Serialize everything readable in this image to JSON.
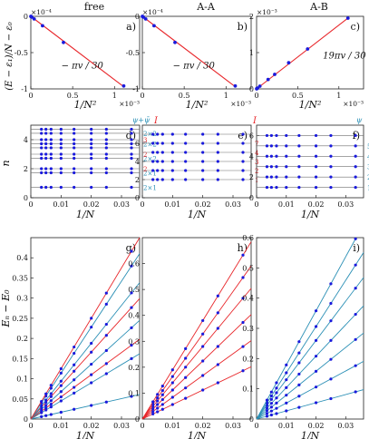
{
  "colors": {
    "red": "#e8262a",
    "teal": "#2a8fb5",
    "blue": "#1a1adc",
    "axis": "#222222",
    "guide": "#6f6f6f"
  },
  "ylabels": {
    "row1": "(E − ε₁)/N − ε₀",
    "row2": "n",
    "row3": "Eₙ − E₀"
  },
  "chart_data": [
    {
      "id": "a",
      "type": "scatter",
      "panel_label": "a)",
      "header": "free",
      "xlabel": "1/N²",
      "x_exponent": "×10⁻³",
      "y_exponent": "×10⁻⁴",
      "xlim": [
        0,
        1.3
      ],
      "ylim": [
        -1.0,
        0.0
      ],
      "xticks": [
        0,
        0.5,
        1
      ],
      "yticks": [
        -1,
        -0.5,
        0
      ],
      "xticklabels": [
        "0",
        "0.5",
        "1"
      ],
      "yticklabels": [
        "-1",
        "-0.5",
        "0"
      ],
      "x": [
        0.0008,
        0.003,
        0.012,
        0.04,
        0.14,
        0.39,
        1.11
      ],
      "y": [
        0.0,
        -0.003,
        -0.011,
        -0.036,
        -0.13,
        -0.36,
        -0.96
      ],
      "fit": {
        "x": [
          0,
          1.11
        ],
        "y": [
          0,
          -0.97
        ],
        "color": "red"
      },
      "annotation": "− πv / 30"
    },
    {
      "id": "b",
      "type": "scatter",
      "panel_label": "b)",
      "header": "A-A",
      "xlabel": "1/N²",
      "x_exponent": "×10⁻³",
      "y_exponent": "×10⁻⁴",
      "xlim": [
        0,
        1.3
      ],
      "ylim": [
        -1.0,
        0.0
      ],
      "xticks": [
        0,
        0.5,
        1
      ],
      "yticks": [
        -1,
        -0.5,
        0
      ],
      "xticklabels": [
        "0",
        "0.5",
        "1"
      ],
      "yticklabels": [
        "-1",
        "-0.5",
        "0"
      ],
      "x": [
        0.0008,
        0.003,
        0.012,
        0.04,
        0.14,
        0.39,
        1.11
      ],
      "y": [
        0.0,
        -0.003,
        -0.011,
        -0.036,
        -0.13,
        -0.36,
        -0.96
      ],
      "fit": {
        "x": [
          0,
          1.11
        ],
        "y": [
          0,
          -0.97
        ],
        "color": "red"
      },
      "annotation": "− πv / 30"
    },
    {
      "id": "c",
      "type": "scatter",
      "panel_label": "c)",
      "header": "A-B",
      "xlabel": "1/N²",
      "x_exponent": "×10⁻³",
      "y_exponent": "×10⁻³",
      "xlim": [
        0,
        1.3
      ],
      "ylim": [
        0,
        2.0
      ],
      "xticks": [
        0,
        0.5,
        1
      ],
      "yticks": [
        0,
        1,
        2
      ],
      "xticklabels": [
        "0",
        "0.5",
        "1"
      ],
      "yticklabels": [
        "0",
        "1",
        "2"
      ],
      "x": [
        0.0008,
        0.003,
        0.012,
        0.04,
        0.14,
        0.22,
        0.39,
        0.62,
        1.11
      ],
      "y": [
        0.002,
        0.006,
        0.022,
        0.075,
        0.26,
        0.4,
        0.72,
        1.1,
        1.95
      ],
      "fit": {
        "x": [
          0,
          1.11
        ],
        "y": [
          0,
          1.95
        ],
        "color": "red"
      },
      "annotation": "19πv / 30"
    },
    {
      "id": "d",
      "type": "scatter",
      "panel_label": "d)",
      "xlabel": "1/N",
      "ylabel": "n",
      "xlim": [
        0,
        0.036
      ],
      "ylim": [
        0,
        5
      ],
      "xticks": [
        0,
        0.01,
        0.02,
        0.03
      ],
      "yticks": [
        0,
        2,
        4
      ],
      "xticklabels": [
        "0",
        "0.01",
        "0.02",
        "0.03"
      ],
      "yticklabels": [
        "0",
        "2",
        "4"
      ],
      "x": [
        0.0035,
        0.005,
        0.0067,
        0.01,
        0.0143,
        0.02,
        0.025,
        0.0333
      ],
      "levels": [
        0.72,
        1.72,
        2.0,
        2.72,
        3.0,
        3.44,
        3.72,
        4.0,
        4.44,
        4.72
      ],
      "legend_top_teal": "ψ+ψ̄",
      "legend_top_red": "I",
      "right_labels": [
        {
          "y": 0.72,
          "text": "2×1",
          "color": "teal"
        },
        {
          "y": 1.72,
          "text": "2×1",
          "color": "teal"
        },
        {
          "y": 2.0,
          "text": "2",
          "color": "red"
        },
        {
          "y": 2.72,
          "text": "2×2",
          "color": "teal"
        },
        {
          "y": 3.0,
          "text": "2",
          "color": "red"
        },
        {
          "y": 3.72,
          "text": "2×2",
          "color": "teal"
        },
        {
          "y": 4.0,
          "text": "3",
          "color": "red"
        },
        {
          "y": 4.44,
          "text": "2×2",
          "color": "teal"
        }
      ]
    },
    {
      "id": "e",
      "type": "scatter",
      "panel_label": "e)",
      "xlabel": "1/N",
      "xlim": [
        0,
        0.036
      ],
      "ylim": [
        0,
        8
      ],
      "xticks": [
        0,
        0.01,
        0.02,
        0.03
      ],
      "yticks": [
        0,
        2,
        4,
        6
      ],
      "xticklabels": [
        "0",
        "0.01",
        "0.02",
        "0.03"
      ],
      "yticklabels": [
        "0",
        "2",
        "4",
        "6"
      ],
      "x": [
        0.0035,
        0.005,
        0.0067,
        0.01,
        0.0143,
        0.02,
        0.025,
        0.0333
      ],
      "levels": [
        2,
        3,
        4,
        5,
        6,
        7
      ],
      "legend_top_red": "I",
      "right_labels": [
        {
          "y": 2,
          "text": "1",
          "color": "red"
        },
        {
          "y": 3,
          "text": "2",
          "color": "red"
        },
        {
          "y": 4,
          "text": "3",
          "color": "red"
        },
        {
          "y": 5,
          "text": "4",
          "color": "red"
        },
        {
          "y": 6,
          "text": "7",
          "color": "red"
        }
      ]
    },
    {
      "id": "f",
      "type": "scatter",
      "panel_label": "f)",
      "xlabel": "1/N",
      "xlim": [
        0,
        0.036
      ],
      "ylim": [
        0,
        7
      ],
      "xticks": [
        0,
        0.01,
        0.02,
        0.03
      ],
      "yticks": [
        0,
        2,
        4,
        6
      ],
      "xticklabels": [
        "0",
        "0.01",
        "0.02",
        "0.03"
      ],
      "yticklabels": [
        "0",
        "2",
        "4",
        "6"
      ],
      "x": [
        0.0035,
        0.005,
        0.0067,
        0.01,
        0.0143,
        0.02,
        0.025,
        0.0333
      ],
      "levels": [
        1,
        2,
        3,
        4,
        5,
        6
      ],
      "legend_top_teal": "ψ",
      "right_labels": [
        {
          "y": 1,
          "text": "1",
          "color": "teal"
        },
        {
          "y": 2,
          "text": "2",
          "color": "teal"
        },
        {
          "y": 3,
          "text": "3",
          "color": "teal"
        },
        {
          "y": 4,
          "text": "4",
          "color": "teal"
        },
        {
          "y": 5,
          "text": "5",
          "color": "teal"
        }
      ]
    },
    {
      "id": "g",
      "type": "line",
      "panel_label": "g)",
      "xlabel": "1/N",
      "ylabel": "Eₙ − E₀",
      "xlim": [
        0,
        0.036
      ],
      "ylim": [
        0,
        0.45
      ],
      "xticks": [
        0,
        0.01,
        0.02,
        0.03
      ],
      "yticks": [
        0,
        0.05,
        0.1,
        0.15,
        0.2,
        0.25,
        0.3,
        0.35,
        0.4
      ],
      "xticklabels": [
        "0",
        "0.01",
        "0.02",
        "0.03"
      ],
      "yticklabels": [
        "0",
        "0.05",
        "0.1",
        "0.15",
        "0.2",
        "0.25",
        "0.3",
        "0.35",
        "0.4"
      ],
      "x": [
        0.0035,
        0.005,
        0.0067,
        0.01,
        0.0143,
        0.02,
        0.025,
        0.0333
      ],
      "slopes": [
        {
          "slope": 1.69,
          "color": "teal"
        },
        {
          "slope": 4.5,
          "color": "teal"
        },
        {
          "slope": 5.5,
          "color": "red"
        },
        {
          "slope": 6.8,
          "color": "teal"
        },
        {
          "slope": 8.3,
          "color": "red"
        },
        {
          "slope": 9.4,
          "color": "teal"
        },
        {
          "slope": 11.4,
          "color": "teal"
        },
        {
          "slope": 12.5,
          "color": "red"
        }
      ]
    },
    {
      "id": "h",
      "type": "line",
      "panel_label": "h)",
      "xlabel": "1/N",
      "xlim": [
        0,
        0.036
      ],
      "ylim": [
        0,
        0.7
      ],
      "xticks": [
        0,
        0.01,
        0.02,
        0.03
      ],
      "yticks": [
        0,
        0.1,
        0.2,
        0.3,
        0.4,
        0.5,
        0.6
      ],
      "xticklabels": [
        "0",
        "0.01",
        "0.02",
        "0.03"
      ],
      "yticklabels": [
        "0",
        "0.1",
        "0.2",
        "0.3",
        "0.4",
        "0.5",
        "0.6"
      ],
      "x": [
        0.0035,
        0.005,
        0.0067,
        0.01,
        0.0143,
        0.02,
        0.025,
        0.0333
      ],
      "slopes": [
        {
          "slope": 5.6,
          "color": "red"
        },
        {
          "slope": 8.4,
          "color": "red"
        },
        {
          "slope": 11.2,
          "color": "red"
        },
        {
          "slope": 14.0,
          "color": "red"
        },
        {
          "slope": 16.4,
          "color": "red"
        },
        {
          "slope": 19.0,
          "color": "red"
        }
      ]
    },
    {
      "id": "i",
      "type": "line",
      "panel_label": "i)",
      "xlabel": "1/N",
      "xlim": [
        0,
        0.036
      ],
      "ylim": [
        0,
        0.6
      ],
      "xticks": [
        0,
        0.01,
        0.02,
        0.03
      ],
      "yticks": [
        0,
        0.1,
        0.2,
        0.3,
        0.4,
        0.5,
        0.6
      ],
      "xticklabels": [
        "0",
        "0.01",
        "0.02",
        "0.03"
      ],
      "yticklabels": [
        "0",
        "0.1",
        "0.2",
        "0.3",
        "0.4",
        "0.5",
        "0.6"
      ],
      "x": [
        0.0035,
        0.005,
        0.0067,
        0.01,
        0.0143,
        0.02,
        0.025,
        0.0333
      ],
      "slopes": [
        {
          "slope": 2.7,
          "color": "teal"
        },
        {
          "slope": 5.3,
          "color": "teal"
        },
        {
          "slope": 7.9,
          "color": "teal"
        },
        {
          "slope": 10.4,
          "color": "teal"
        },
        {
          "slope": 13.0,
          "color": "teal"
        },
        {
          "slope": 15.3,
          "color": "teal"
        },
        {
          "slope": 17.9,
          "color": "teal"
        }
      ]
    }
  ]
}
